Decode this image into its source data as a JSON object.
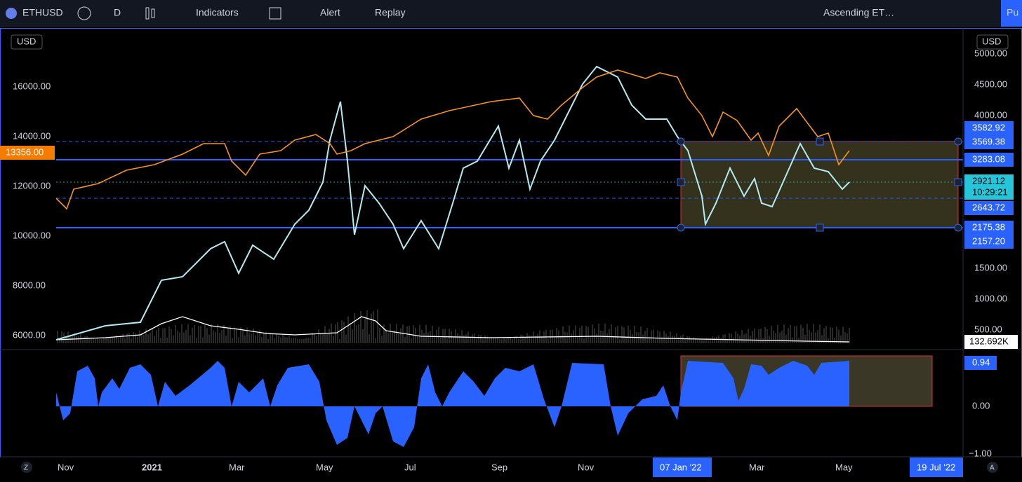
{
  "toolbar": {
    "symbol": "ETHUSD",
    "interval": "D",
    "indicators": "Indicators",
    "alert": "Alert",
    "replay": "Replay",
    "layout": "Ascending ET…",
    "publish": "Pu"
  },
  "left_axis": {
    "currency": "USD",
    "labels": [
      "16000.00",
      "14000.00",
      "12000.00",
      "10000.00",
      "8000.00",
      "6000.00"
    ],
    "price_tag": "13356.00"
  },
  "right_axis": {
    "currency": "USD",
    "labels": [
      "5000.00",
      "4500.00",
      "4000.00",
      "1500.00",
      "1000.00",
      "500.00"
    ],
    "tags": [
      "3582.92",
      "3569.38",
      "3283.08",
      "2921.12",
      "10:29:21",
      "2643.72",
      "2175.38",
      "2157.20",
      "132.692K"
    ]
  },
  "indicator_axis": {
    "labels": [
      "0.94",
      "0.00",
      "−1.00"
    ]
  },
  "time_axis": {
    "labels": [
      "Nov",
      "2021",
      "Mar",
      "May",
      "Jul",
      "Sep",
      "Nov",
      "07 Jan '22",
      "Mar",
      "May",
      "19 Jul '22"
    ],
    "left_button": "Z",
    "right_button": "A"
  }
}
